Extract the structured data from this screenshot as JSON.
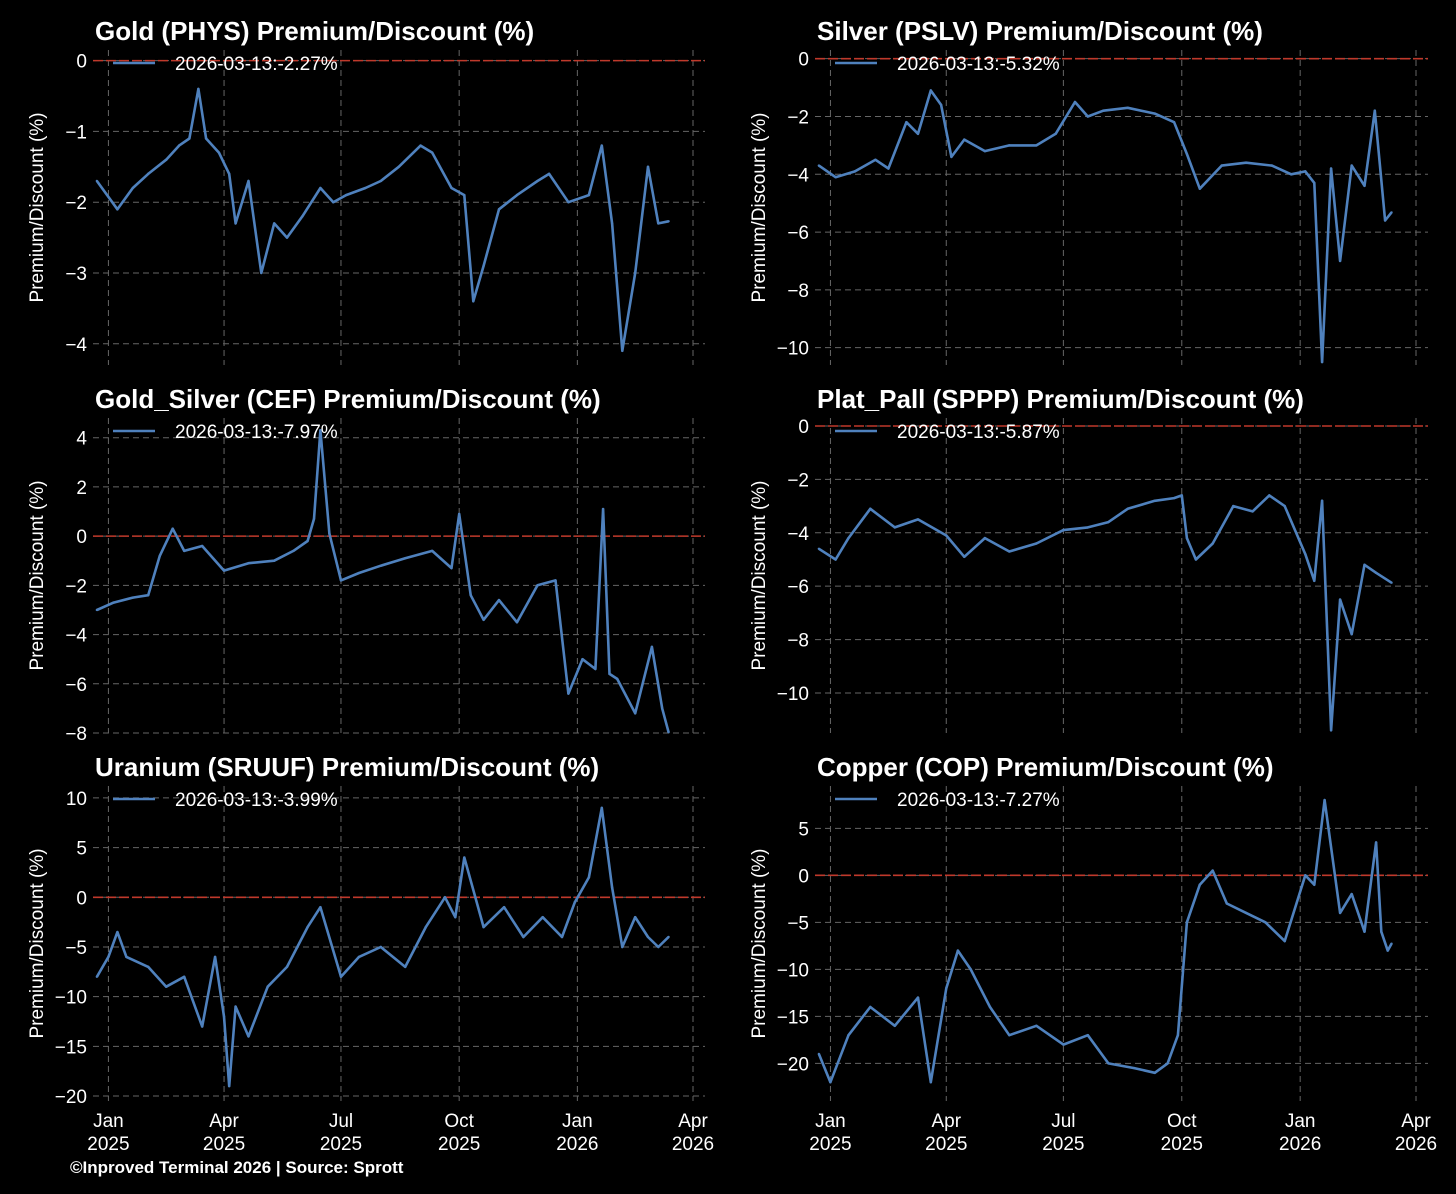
{
  "footer": "©Inproved Terminal 2026 | Source: Sprott",
  "x_ticks": [
    {
      "date": "2025-01-01",
      "line1": "Jan",
      "line2": "2025"
    },
    {
      "date": "2025-04-01",
      "line1": "Apr",
      "line2": "2025"
    },
    {
      "date": "2025-07-01",
      "line1": "Jul",
      "line2": "2025"
    },
    {
      "date": "2025-10-01",
      "line1": "Oct",
      "line2": "2025"
    },
    {
      "date": "2026-01-01",
      "line1": "Jan",
      "line2": "2026"
    },
    {
      "date": "2026-04-01",
      "line1": "Apr",
      "line2": "2026"
    }
  ],
  "colors": {
    "line": "#4f81bd",
    "zero_line": "#c0392b",
    "grid": "#666666",
    "background": "#000000",
    "text": "#ffffff"
  },
  "chart_data": [
    {
      "type": "line",
      "title": "Gold (PHYS) Premium/Discount (%)",
      "ylabel": "Premium/Discount (%)",
      "xlabel": "",
      "legend": "2026-03-13:-2.27%",
      "legend_position": "top-left",
      "grid": true,
      "x_range": [
        "2024-12-20",
        "2026-04-01"
      ],
      "ylim": [
        -4.3,
        0.15
      ],
      "yticks": [
        0,
        -1,
        -2,
        -3,
        -4
      ],
      "x": [
        "2024-12-23",
        "2025-01-08",
        "2025-01-20",
        "2025-02-01",
        "2025-02-15",
        "2025-02-25",
        "2025-03-05",
        "2025-03-12",
        "2025-03-18",
        "2025-03-28",
        "2025-04-05",
        "2025-04-10",
        "2025-04-20",
        "2025-04-30",
        "2025-05-10",
        "2025-05-20",
        "2025-06-01",
        "2025-06-15",
        "2025-06-25",
        "2025-07-05",
        "2025-07-20",
        "2025-08-01",
        "2025-08-15",
        "2025-09-01",
        "2025-09-10",
        "2025-09-25",
        "2025-10-05",
        "2025-10-12",
        "2025-10-20",
        "2025-11-01",
        "2025-11-15",
        "2025-12-01",
        "2025-12-10",
        "2025-12-25",
        "2026-01-10",
        "2026-01-20",
        "2026-01-28",
        "2026-02-05",
        "2026-02-15",
        "2026-02-25",
        "2026-03-05",
        "2026-03-13"
      ],
      "series": [
        {
          "values": [
            -1.7,
            -2.1,
            -1.8,
            -1.6,
            -1.4,
            -1.2,
            -1.1,
            -0.4,
            -1.1,
            -1.3,
            -1.6,
            -2.3,
            -1.7,
            -3.0,
            -2.3,
            -2.5,
            -2.2,
            -1.8,
            -2.0,
            -1.9,
            -1.8,
            -1.7,
            -1.5,
            -1.2,
            -1.3,
            -1.8,
            -1.9,
            -3.4,
            -2.9,
            -2.1,
            -1.9,
            -1.7,
            -1.6,
            -2.0,
            -1.9,
            -1.2,
            -2.3,
            -4.1,
            -3.0,
            -1.5,
            -2.3,
            -2.27
          ]
        }
      ]
    },
    {
      "type": "line",
      "title": "Silver (PSLV) Premium/Discount (%)",
      "ylabel": "Premium/Discount (%)",
      "xlabel": "",
      "legend": "2026-03-13:-5.32%",
      "legend_position": "top-left",
      "grid": true,
      "x_range": [
        "2024-12-20",
        "2026-04-01"
      ],
      "ylim": [
        -10.6,
        0.3
      ],
      "yticks": [
        0,
        -2,
        -4,
        -6,
        -8,
        -10
      ],
      "x": [
        "2024-12-23",
        "2025-01-05",
        "2025-01-20",
        "2025-02-05",
        "2025-02-15",
        "2025-03-01",
        "2025-03-10",
        "2025-03-20",
        "2025-03-28",
        "2025-04-05",
        "2025-04-15",
        "2025-05-01",
        "2025-05-20",
        "2025-06-10",
        "2025-06-25",
        "2025-07-10",
        "2025-07-20",
        "2025-08-01",
        "2025-08-20",
        "2025-09-10",
        "2025-09-25",
        "2025-10-05",
        "2025-10-15",
        "2025-11-01",
        "2025-11-20",
        "2025-12-10",
        "2025-12-25",
        "2026-01-05",
        "2026-01-12",
        "2026-01-18",
        "2026-01-25",
        "2026-02-01",
        "2026-02-10",
        "2026-02-20",
        "2026-02-28",
        "2026-03-08",
        "2026-03-13"
      ],
      "series": [
        {
          "values": [
            -3.7,
            -4.1,
            -3.9,
            -3.5,
            -3.8,
            -2.2,
            -2.6,
            -1.1,
            -1.6,
            -3.4,
            -2.8,
            -3.2,
            -3.0,
            -3.0,
            -2.6,
            -1.5,
            -2.0,
            -1.8,
            -1.7,
            -1.9,
            -2.2,
            -3.3,
            -4.5,
            -3.7,
            -3.6,
            -3.7,
            -4.0,
            -3.9,
            -4.3,
            -10.5,
            -3.8,
            -7.0,
            -3.7,
            -4.4,
            -1.8,
            -5.6,
            -5.32
          ]
        }
      ]
    },
    {
      "type": "line",
      "title": "Gold_Silver (CEF) Premium/Discount (%)",
      "ylabel": "Premium/Discount (%)",
      "xlabel": "",
      "legend": "2026-03-13:-7.97%",
      "legend_position": "top-left",
      "grid": true,
      "x_range": [
        "2024-12-20",
        "2026-04-01"
      ],
      "ylim": [
        -8.0,
        4.8
      ],
      "yticks": [
        4,
        2,
        0,
        -2,
        -4,
        -6,
        -8
      ],
      "x": [
        "2024-12-23",
        "2025-01-05",
        "2025-01-20",
        "2025-02-01",
        "2025-02-10",
        "2025-02-20",
        "2025-03-01",
        "2025-03-15",
        "2025-04-01",
        "2025-04-20",
        "2025-05-10",
        "2025-05-25",
        "2025-06-05",
        "2025-06-10",
        "2025-06-15",
        "2025-06-22",
        "2025-07-01",
        "2025-07-15",
        "2025-08-01",
        "2025-08-20",
        "2025-09-10",
        "2025-09-25",
        "2025-10-01",
        "2025-10-10",
        "2025-10-20",
        "2025-11-01",
        "2025-11-15",
        "2025-12-01",
        "2025-12-15",
        "2025-12-25",
        "2026-01-05",
        "2026-01-15",
        "2026-01-21",
        "2026-01-26",
        "2026-02-01",
        "2026-02-15",
        "2026-02-28",
        "2026-03-08",
        "2026-03-13"
      ],
      "series": [
        {
          "values": [
            -3.0,
            -2.7,
            -2.5,
            -2.4,
            -0.8,
            0.3,
            -0.6,
            -0.4,
            -1.4,
            -1.1,
            -1.0,
            -0.6,
            -0.2,
            0.7,
            4.3,
            0.1,
            -1.8,
            -1.5,
            -1.2,
            -0.9,
            -0.6,
            -1.3,
            0.9,
            -2.4,
            -3.4,
            -2.6,
            -3.5,
            -2.0,
            -1.8,
            -6.4,
            -5.0,
            -5.4,
            1.1,
            -5.6,
            -5.8,
            -7.2,
            -4.5,
            -7.0,
            -7.97
          ]
        }
      ]
    },
    {
      "type": "line",
      "title": "Plat_Pall (SPPP) Premium/Discount (%)",
      "ylabel": "Premium/Discount (%)",
      "xlabel": "",
      "legend": "2026-03-13:-5.87%",
      "legend_position": "top-left",
      "grid": true,
      "x_range": [
        "2024-12-20",
        "2026-04-01"
      ],
      "ylim": [
        -11.5,
        0.3
      ],
      "yticks": [
        0,
        -2,
        -4,
        -6,
        -8,
        -10
      ],
      "x": [
        "2024-12-23",
        "2025-01-05",
        "2025-01-15",
        "2025-02-01",
        "2025-02-20",
        "2025-03-10",
        "2025-04-01",
        "2025-04-15",
        "2025-05-01",
        "2025-05-20",
        "2025-06-10",
        "2025-07-01",
        "2025-07-20",
        "2025-08-05",
        "2025-08-20",
        "2025-09-10",
        "2025-09-25",
        "2025-10-01",
        "2025-10-05",
        "2025-10-12",
        "2025-10-25",
        "2025-11-10",
        "2025-11-25",
        "2025-12-08",
        "2025-12-20",
        "2026-01-05",
        "2026-01-12",
        "2026-01-18",
        "2026-01-25",
        "2026-02-01",
        "2026-02-10",
        "2026-02-20",
        "2026-03-01",
        "2026-03-13"
      ],
      "series": [
        {
          "values": [
            -4.6,
            -5.0,
            -4.2,
            -3.1,
            -3.8,
            -3.5,
            -4.1,
            -4.9,
            -4.2,
            -4.7,
            -4.4,
            -3.9,
            -3.8,
            -3.6,
            -3.1,
            -2.8,
            -2.7,
            -2.6,
            -4.2,
            -5.0,
            -4.4,
            -3.0,
            -3.2,
            -2.6,
            -3.0,
            -4.8,
            -5.8,
            -2.8,
            -11.4,
            -6.5,
            -7.8,
            -5.2,
            -5.5,
            -5.87
          ]
        }
      ]
    },
    {
      "type": "line",
      "title": "Uranium (SRUUF) Premium/Discount (%)",
      "ylabel": "Premium/Discount (%)",
      "xlabel": "",
      "legend": "2026-03-13:-3.99%",
      "legend_position": "top-left",
      "grid": true,
      "x_range": [
        "2024-12-20",
        "2026-04-01"
      ],
      "ylim": [
        -20.5,
        11.2
      ],
      "yticks": [
        10,
        5,
        0,
        -5,
        -10,
        -15,
        -20
      ],
      "x": [
        "2024-12-23",
        "2025-01-01",
        "2025-01-08",
        "2025-01-15",
        "2025-02-01",
        "2025-02-15",
        "2025-03-01",
        "2025-03-15",
        "2025-03-25",
        "2025-04-01",
        "2025-04-05",
        "2025-04-10",
        "2025-04-20",
        "2025-05-05",
        "2025-05-20",
        "2025-06-05",
        "2025-06-15",
        "2025-07-01",
        "2025-07-15",
        "2025-08-01",
        "2025-08-20",
        "2025-09-05",
        "2025-09-20",
        "2025-09-28",
        "2025-10-05",
        "2025-10-20",
        "2025-11-05",
        "2025-11-20",
        "2025-12-05",
        "2025-12-20",
        "2025-12-30",
        "2026-01-10",
        "2026-01-20",
        "2026-01-28",
        "2026-02-05",
        "2026-02-15",
        "2026-02-25",
        "2026-03-05",
        "2026-03-13"
      ],
      "series": [
        {
          "values": [
            -8.0,
            -6.0,
            -3.5,
            -6.0,
            -7.0,
            -9.0,
            -8.0,
            -13.0,
            -6.0,
            -12.0,
            -19.0,
            -11.0,
            -14.0,
            -9.0,
            -7.0,
            -3.0,
            -1.0,
            -8.0,
            -6.0,
            -5.0,
            -7.0,
            -3.0,
            0.0,
            -2.0,
            4.0,
            -3.0,
            -1.0,
            -4.0,
            -2.0,
            -4.0,
            -0.5,
            2.0,
            9.0,
            1.0,
            -5.0,
            -2.0,
            -4.0,
            -5.0,
            -3.99
          ]
        }
      ]
    },
    {
      "type": "line",
      "title": "Copper (COP) Premium/Discount (%)",
      "ylabel": "Premium/Discount (%)",
      "xlabel": "",
      "legend": "2026-03-13:-7.27%",
      "legend_position": "top-left",
      "grid": true,
      "x_range": [
        "2024-12-20",
        "2026-04-01"
      ],
      "ylim": [
        -24.0,
        9.5
      ],
      "yticks": [
        5,
        0,
        -5,
        -10,
        -15,
        -20
      ],
      "x": [
        "2024-12-23",
        "2025-01-01",
        "2025-01-15",
        "2025-02-01",
        "2025-02-20",
        "2025-03-10",
        "2025-03-20",
        "2025-04-01",
        "2025-04-10",
        "2025-04-20",
        "2025-05-05",
        "2025-05-20",
        "2025-06-10",
        "2025-07-01",
        "2025-07-20",
        "2025-08-05",
        "2025-08-25",
        "2025-09-10",
        "2025-09-20",
        "2025-09-28",
        "2025-10-05",
        "2025-10-15",
        "2025-10-25",
        "2025-11-05",
        "2025-11-20",
        "2025-12-05",
        "2025-12-20",
        "2026-01-05",
        "2026-01-12",
        "2026-01-20",
        "2026-02-01",
        "2026-02-10",
        "2026-02-20",
        "2026-03-01",
        "2026-03-05",
        "2026-03-10",
        "2026-03-13"
      ],
      "series": [
        {
          "values": [
            -19.0,
            -22.0,
            -17.0,
            -14.0,
            -16.0,
            -13.0,
            -22.0,
            -12.0,
            -8.0,
            -10.0,
            -14.0,
            -17.0,
            -16.0,
            -18.0,
            -17.0,
            -20.0,
            -20.5,
            -21.0,
            -20.0,
            -17.0,
            -5.0,
            -1.0,
            0.5,
            -3.0,
            -4.0,
            -5.0,
            -7.0,
            0.0,
            -1.0,
            8.0,
            -4.0,
            -2.0,
            -6.0,
            3.5,
            -6.0,
            -8.0,
            -7.27
          ]
        }
      ]
    }
  ]
}
